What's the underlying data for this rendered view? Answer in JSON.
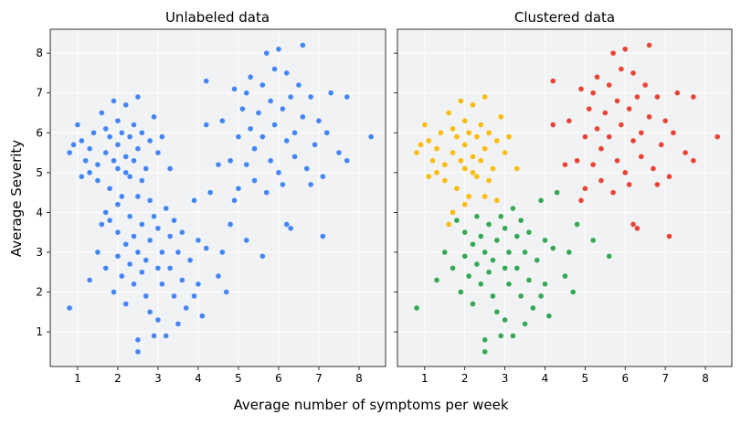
{
  "chart_data": [
    {
      "type": "scatter",
      "title": "Unlabeled data",
      "xlabel": "Average number of symptoms per week",
      "ylabel": "Average Severity",
      "xlim": [
        0.32,
        8.66
      ],
      "ylim": [
        0.13,
        8.6
      ],
      "xticks": [
        1,
        2,
        3,
        4,
        5,
        6,
        7,
        8
      ],
      "yticks": [
        1,
        2,
        3,
        4,
        5,
        6,
        7,
        8
      ],
      "grid": true,
      "color_by_cluster": false,
      "point_color": "#4285f4"
    },
    {
      "type": "scatter",
      "title": "Clustered data",
      "xlim": [
        0.32,
        8.66
      ],
      "ylim": [
        0.13,
        8.6
      ],
      "xticks": [
        1,
        2,
        3,
        4,
        5,
        6,
        7,
        8
      ],
      "yticks": [
        1,
        2,
        3,
        4,
        5,
        6,
        7,
        8
      ],
      "shared_y": true,
      "grid": true,
      "color_by_cluster": true,
      "cluster_colors": [
        "#fbbc04",
        "#34a853",
        "#ea4335"
      ]
    }
  ],
  "points": [
    [
      0.8,
      5.5,
      0
    ],
    [
      1.0,
      6.2,
      0
    ],
    [
      1.1,
      5.8,
      0
    ],
    [
      0.9,
      5.7,
      0
    ],
    [
      1.2,
      5.3,
      0
    ],
    [
      1.1,
      4.9,
      0
    ],
    [
      1.3,
      5.6,
      0
    ],
    [
      1.4,
      6.0,
      0
    ],
    [
      1.5,
      5.2,
      0
    ],
    [
      1.5,
      4.8,
      0
    ],
    [
      1.6,
      6.5,
      0
    ],
    [
      1.7,
      6.1,
      0
    ],
    [
      1.7,
      5.5,
      0
    ],
    [
      1.8,
      5.9,
      0
    ],
    [
      1.8,
      4.6,
      0
    ],
    [
      1.9,
      6.8,
      0
    ],
    [
      2.0,
      6.3,
      0
    ],
    [
      2.0,
      5.7,
      0
    ],
    [
      2.0,
      5.1,
      0
    ],
    [
      2.1,
      4.4,
      0
    ],
    [
      2.1,
      6.0,
      0
    ],
    [
      2.2,
      5.4,
      0
    ],
    [
      2.2,
      6.7,
      0
    ],
    [
      2.3,
      5.9,
      0
    ],
    [
      2.3,
      4.9,
      0
    ],
    [
      2.4,
      6.2,
      0
    ],
    [
      2.4,
      5.3,
      0
    ],
    [
      2.5,
      6.9,
      0
    ],
    [
      2.5,
      5.6,
      0
    ],
    [
      2.6,
      4.8,
      0
    ],
    [
      2.6,
      6.0,
      0
    ],
    [
      2.7,
      5.1,
      0
    ],
    [
      2.8,
      5.8,
      0
    ],
    [
      2.9,
      6.4,
      0
    ],
    [
      3.0,
      5.5,
      0
    ],
    [
      3.1,
      5.9,
      0
    ],
    [
      1.7,
      4.0,
      0
    ],
    [
      1.6,
      3.7,
      0
    ],
    [
      2.0,
      4.2,
      0
    ],
    [
      2.5,
      4.4,
      0
    ],
    [
      3.3,
      5.1,
      0
    ],
    [
      2.8,
      4.3,
      0
    ],
    [
      1.3,
      5.0,
      0
    ],
    [
      1.9,
      5.3,
      0
    ],
    [
      2.2,
      5.0,
      0
    ],
    [
      0.8,
      1.6,
      1
    ],
    [
      1.3,
      2.3,
      1
    ],
    [
      1.5,
      3.0,
      1
    ],
    [
      1.7,
      2.6,
      1
    ],
    [
      1.8,
      3.8,
      1
    ],
    [
      1.9,
      2.0,
      1
    ],
    [
      2.0,
      2.9,
      1
    ],
    [
      2.0,
      3.5,
      1
    ],
    [
      2.1,
      2.4,
      1
    ],
    [
      2.2,
      3.2,
      1
    ],
    [
      2.2,
      1.7,
      1
    ],
    [
      2.3,
      2.7,
      1
    ],
    [
      2.3,
      3.9,
      1
    ],
    [
      2.4,
      3.4,
      1
    ],
    [
      2.4,
      2.2,
      1
    ],
    [
      2.5,
      0.5,
      1
    ],
    [
      2.5,
      0.8,
      1
    ],
    [
      2.5,
      3.0,
      1
    ],
    [
      2.6,
      2.5,
      1
    ],
    [
      2.6,
      3.7,
      1
    ],
    [
      2.7,
      1.9,
      1
    ],
    [
      2.7,
      2.8,
      1
    ],
    [
      2.8,
      3.3,
      1
    ],
    [
      2.8,
      1.5,
      1
    ],
    [
      2.9,
      0.9,
      1
    ],
    [
      2.9,
      3.9,
      1
    ],
    [
      3.0,
      2.6,
      1
    ],
    [
      3.0,
      1.3,
      1
    ],
    [
      3.0,
      3.6,
      1
    ],
    [
      3.1,
      2.2,
      1
    ],
    [
      3.1,
      3.0,
      1
    ],
    [
      3.2,
      4.1,
      1
    ],
    [
      3.2,
      0.9,
      1
    ],
    [
      3.3,
      3.4,
      1
    ],
    [
      3.3,
      2.6,
      1
    ],
    [
      3.4,
      1.9,
      1
    ],
    [
      3.4,
      3.8,
      1
    ],
    [
      3.5,
      3.0,
      1
    ],
    [
      3.5,
      1.2,
      1
    ],
    [
      3.6,
      2.3,
      1
    ],
    [
      3.6,
      3.5,
      1
    ],
    [
      3.7,
      1.6,
      1
    ],
    [
      3.8,
      2.8,
      1
    ],
    [
      3.9,
      4.3,
      1
    ],
    [
      3.9,
      1.9,
      1
    ],
    [
      4.0,
      3.3,
      1
    ],
    [
      4.0,
      2.2,
      1
    ],
    [
      4.1,
      1.4,
      1
    ],
    [
      4.2,
      3.1,
      1
    ],
    [
      4.3,
      4.5,
      1
    ],
    [
      4.5,
      2.4,
      1
    ],
    [
      4.7,
      2.0,
      1
    ],
    [
      4.8,
      3.7,
      1
    ],
    [
      5.2,
      3.3,
      1
    ],
    [
      5.6,
      2.9,
      1
    ],
    [
      4.6,
      3.0,
      1
    ],
    [
      4.2,
      6.2,
      2
    ],
    [
      4.2,
      7.3,
      2
    ],
    [
      4.5,
      5.2,
      2
    ],
    [
      4.6,
      6.3,
      2
    ],
    [
      4.8,
      5.3,
      2
    ],
    [
      4.9,
      7.1,
      2
    ],
    [
      5.0,
      4.6,
      2
    ],
    [
      5.0,
      5.9,
      2
    ],
    [
      5.1,
      6.6,
      2
    ],
    [
      5.2,
      5.2,
      2
    ],
    [
      5.2,
      7.0,
      2
    ],
    [
      5.3,
      6.1,
      2
    ],
    [
      5.3,
      7.4,
      2
    ],
    [
      5.4,
      4.8,
      2
    ],
    [
      5.4,
      5.6,
      2
    ],
    [
      5.5,
      6.5,
      2
    ],
    [
      5.6,
      7.2,
      2
    ],
    [
      5.6,
      5.9,
      2
    ],
    [
      5.7,
      4.5,
      2
    ],
    [
      5.7,
      8.0,
      2
    ],
    [
      5.8,
      6.8,
      2
    ],
    [
      5.8,
      5.3,
      2
    ],
    [
      5.9,
      6.2,
      2
    ],
    [
      5.9,
      7.6,
      2
    ],
    [
      6.0,
      8.1,
      2
    ],
    [
      6.0,
      5.0,
      2
    ],
    [
      6.1,
      6.6,
      2
    ],
    [
      6.1,
      4.7,
      2
    ],
    [
      6.2,
      7.5,
      2
    ],
    [
      6.2,
      5.8,
      2
    ],
    [
      6.3,
      6.9,
      2
    ],
    [
      6.3,
      3.6,
      2
    ],
    [
      6.4,
      6.0,
      2
    ],
    [
      6.4,
      5.4,
      2
    ],
    [
      6.5,
      7.2,
      2
    ],
    [
      6.6,
      8.2,
      2
    ],
    [
      6.6,
      6.4,
      2
    ],
    [
      6.7,
      5.1,
      2
    ],
    [
      6.8,
      6.9,
      2
    ],
    [
      6.9,
      5.7,
      2
    ],
    [
      7.0,
      6.3,
      2
    ],
    [
      7.1,
      4.9,
      2
    ],
    [
      7.1,
      3.4,
      2
    ],
    [
      7.2,
      6.0,
      2
    ],
    [
      7.3,
      7.0,
      2
    ],
    [
      7.5,
      5.5,
      2
    ],
    [
      7.7,
      6.9,
      2
    ],
    [
      7.7,
      5.3,
      2
    ],
    [
      8.3,
      5.9,
      2
    ],
    [
      6.2,
      3.7,
      2
    ],
    [
      4.9,
      4.3,
      2
    ],
    [
      6.8,
      4.7,
      2
    ]
  ]
}
